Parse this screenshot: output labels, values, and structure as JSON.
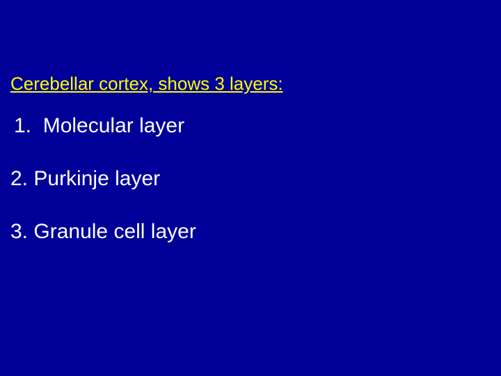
{
  "slide": {
    "background_color": "#000099",
    "heading": {
      "text": "Cerebellar cortex, shows 3 layers:",
      "color": "#ffff00",
      "fontsize": 26,
      "underline": true
    },
    "items": [
      {
        "number": "1.",
        "text": "Molecular layer"
      },
      {
        "number": "2.",
        "text": "Purkinje layer"
      },
      {
        "number": "3.",
        "text": "Granule cell layer"
      }
    ],
    "item_color": "#ffffff",
    "item_fontsize": 30
  }
}
